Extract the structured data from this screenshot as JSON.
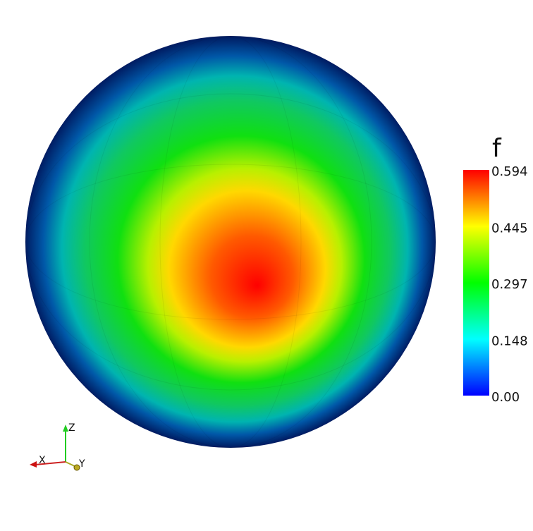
{
  "colorbar": {
    "title": "f",
    "range": [
      0,
      0.594
    ],
    "ticks": [
      0.594,
      0.445,
      0.297,
      0.148,
      {
        "value": 0,
        "label": "0.00"
      }
    ]
  },
  "axes": {
    "x_label": "X",
    "y_label": "Y",
    "z_label": "Z"
  }
}
